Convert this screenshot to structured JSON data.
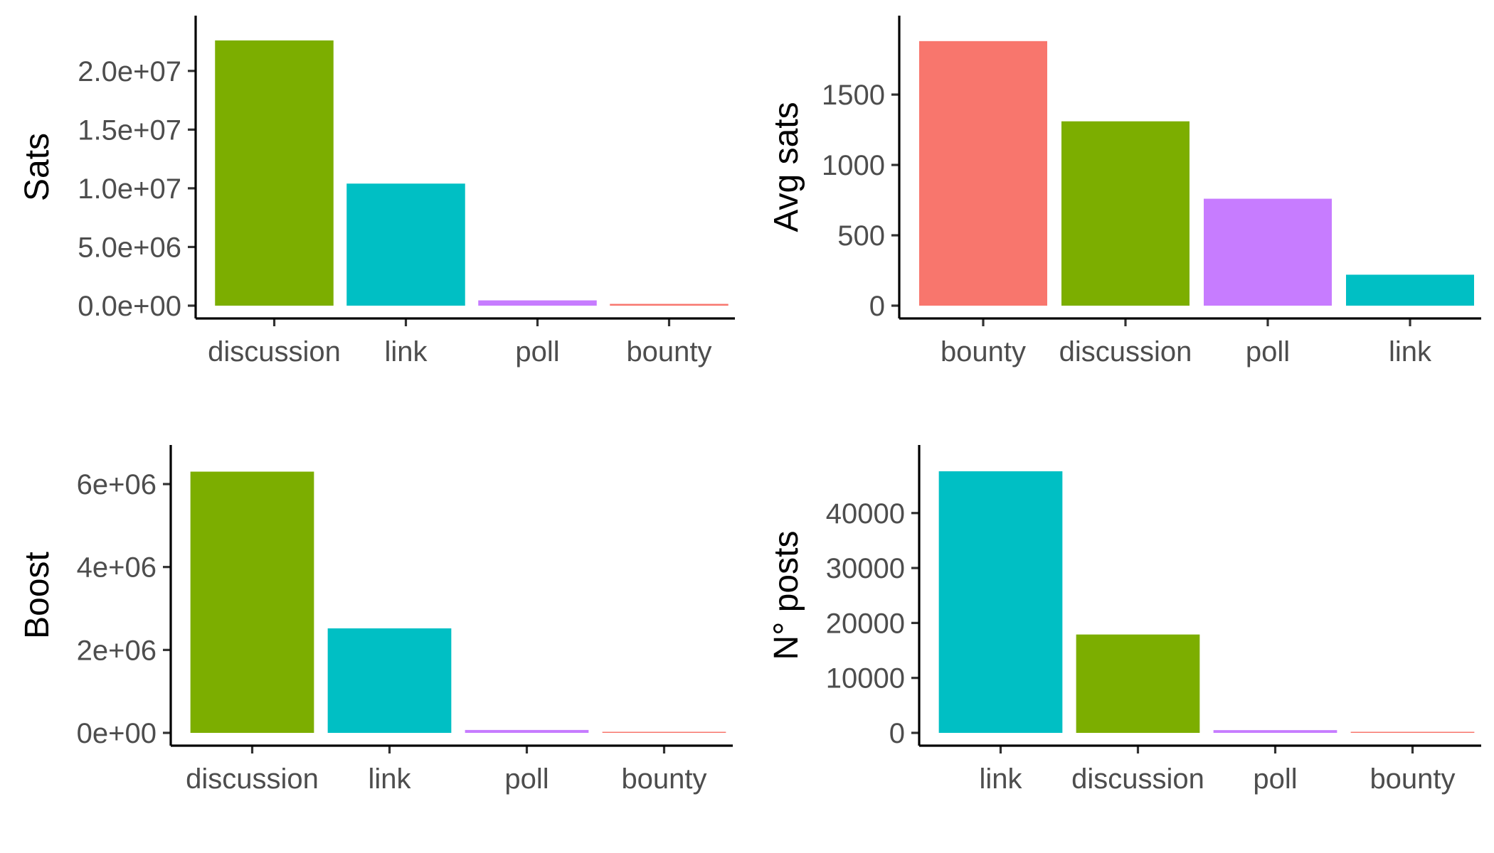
{
  "palette": {
    "bounty": "#F8766D",
    "discussion": "#7CAE00",
    "link": "#00BFC4",
    "poll": "#C77CFF"
  },
  "chart_data": [
    {
      "type": "bar",
      "categories": [
        "discussion",
        "link",
        "poll",
        "bounty"
      ],
      "values": [
        22600000,
        10400000,
        450000,
        150000
      ],
      "xlabel": "",
      "ylabel": "Sats",
      "ylim": [
        0,
        23500000
      ],
      "yticks": [
        0,
        5000000,
        10000000,
        15000000,
        20000000
      ],
      "ytick_labels": [
        "0.0e+00",
        "5.0e+06",
        "1.0e+07",
        "1.5e+07",
        "2.0e+07"
      ],
      "grid": false,
      "legend": "none"
    },
    {
      "type": "bar",
      "categories": [
        "bounty",
        "discussion",
        "poll",
        "link"
      ],
      "values": [
        1880,
        1310,
        760,
        220
      ],
      "xlabel": "",
      "ylabel": "Avg sats",
      "ylim": [
        0,
        1960
      ],
      "yticks": [
        0,
        500,
        1000,
        1500
      ],
      "ytick_labels": [
        "0",
        "500",
        "1000",
        "1500"
      ],
      "grid": false,
      "legend": "none"
    },
    {
      "type": "bar",
      "categories": [
        "discussion",
        "link",
        "poll",
        "bounty"
      ],
      "values": [
        6300000,
        2520000,
        70000,
        25000
      ],
      "xlabel": "",
      "ylabel": "Boost",
      "ylim": [
        0,
        6600000
      ],
      "yticks": [
        0,
        2000000,
        4000000,
        6000000
      ],
      "ytick_labels": [
        "0e+00",
        "2e+06",
        "4e+06",
        "6e+06"
      ],
      "grid": false,
      "legend": "none"
    },
    {
      "type": "bar",
      "categories": [
        "link",
        "discussion",
        "poll",
        "bounty"
      ],
      "values": [
        47600,
        17900,
        500,
        100
      ],
      "xlabel": "",
      "ylabel": "N° posts",
      "ylim": [
        0,
        49800
      ],
      "yticks": [
        0,
        10000,
        20000,
        30000,
        40000
      ],
      "ytick_labels": [
        "0",
        "10000",
        "20000",
        "30000",
        "40000"
      ],
      "grid": false,
      "legend": "none"
    }
  ]
}
